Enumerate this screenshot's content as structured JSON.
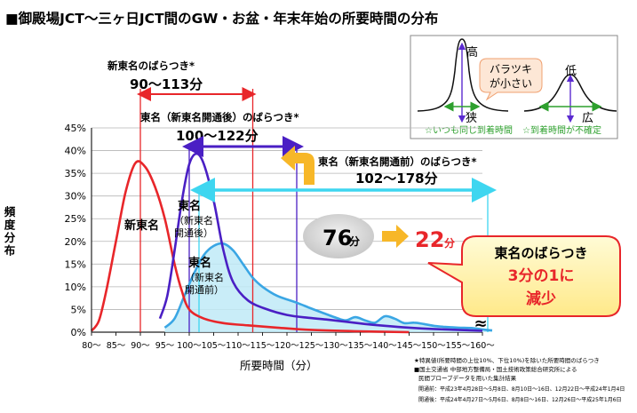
{
  "title": "■御殿場JCT〜三ヶ日JCT間のGW・お盆・年末年始の所要時間の分布",
  "chart_data": {
    "type": "line",
    "x": [
      80,
      85,
      90,
      95,
      100,
      105,
      110,
      115,
      120,
      125,
      130,
      135,
      140,
      145,
      150,
      155,
      160
    ],
    "tick_labels": [
      "80〜",
      "85〜",
      "90〜",
      "95〜",
      "100〜",
      "105〜",
      "110〜",
      "115〜",
      "120〜",
      "125〜",
      "130〜",
      "135〜",
      "140〜",
      "145〜",
      "150〜",
      "155〜",
      "160〜"
    ],
    "y_ticks": [
      "0%",
      "5%",
      "10%",
      "15%",
      "20%",
      "25%",
      "30%",
      "35%",
      "40%",
      "45%"
    ],
    "xlabel": "所要時間（分）",
    "ylabel": "頻度分布",
    "ylim": [
      0,
      45
    ],
    "series": [
      {
        "name": "新東名",
        "color": "#e8262a",
        "fill": false,
        "points": [
          [
            80,
            0.3
          ],
          [
            81.5,
            2.5
          ],
          [
            83,
            9
          ],
          [
            85,
            20
          ],
          [
            87,
            31
          ],
          [
            89,
            37.3
          ],
          [
            91,
            36.4
          ],
          [
            93,
            32
          ],
          [
            95,
            25
          ],
          [
            97,
            15
          ],
          [
            98.5,
            9
          ],
          [
            100,
            5
          ],
          [
            103,
            3
          ],
          [
            107,
            2
          ],
          [
            112,
            1.5
          ],
          [
            118,
            1
          ],
          [
            125,
            0.5
          ],
          [
            135,
            0.2
          ],
          [
            145,
            0
          ]
        ]
      },
      {
        "name": "東名（新東名開通後）",
        "color": "#4a1fc4",
        "fill": false,
        "points": [
          [
            94,
            3
          ],
          [
            95.5,
            8
          ],
          [
            97,
            18
          ],
          [
            98.5,
            29
          ],
          [
            100,
            37
          ],
          [
            101.5,
            39.3
          ],
          [
            103,
            37
          ],
          [
            105,
            29
          ],
          [
            107,
            18
          ],
          [
            109,
            11
          ],
          [
            112,
            7
          ],
          [
            116,
            5
          ],
          [
            120,
            3.8
          ],
          [
            124,
            3.2
          ],
          [
            128,
            2.8
          ],
          [
            132,
            2.3
          ],
          [
            136,
            1.8
          ],
          [
            140,
            1.4
          ],
          [
            145,
            1
          ],
          [
            150,
            0.7
          ],
          [
            155,
            0.5
          ],
          [
            160,
            0.3
          ]
        ]
      },
      {
        "name": "東名（新東名開通前）",
        "color": "#3aa6e4",
        "fill": true,
        "points": [
          [
            95,
            1
          ],
          [
            97,
            3
          ],
          [
            99,
            8
          ],
          [
            101,
            13
          ],
          [
            103,
            17
          ],
          [
            105,
            19
          ],
          [
            107,
            19.5
          ],
          [
            109,
            18
          ],
          [
            111,
            15
          ],
          [
            113,
            12
          ],
          [
            115,
            10
          ],
          [
            118,
            8
          ],
          [
            122,
            6.5
          ],
          [
            125,
            5.2
          ],
          [
            128,
            4
          ],
          [
            130,
            3.2
          ],
          [
            132,
            2.6
          ],
          [
            134,
            3.3
          ],
          [
            136,
            2.6
          ],
          [
            138,
            2.1
          ],
          [
            140,
            3.5
          ],
          [
            142,
            3
          ],
          [
            144,
            2
          ],
          [
            146,
            2.1
          ],
          [
            148,
            1.8
          ],
          [
            150,
            1.4
          ],
          [
            152,
            1.2
          ],
          [
            155,
            1
          ],
          [
            158,
            0.9
          ],
          [
            160,
            0.6
          ],
          [
            162,
            0.4
          ]
        ]
      }
    ],
    "vlines": [
      {
        "x": 90,
        "color": "#e8262a"
      },
      {
        "x": 113,
        "color": "#e8262a"
      },
      {
        "x": 100,
        "color": "#4a1fc4"
      },
      {
        "x": 122,
        "color": "#4a1fc4"
      },
      {
        "x": 102,
        "color": "#3aa6e4"
      },
      {
        "x": 178,
        "color": "#3aa6e4"
      }
    ],
    "ranges": [
      {
        "label": "新東名のばらつき*",
        "value": "90〜113分",
        "color": "#e8262a",
        "from": 90,
        "to": 113
      },
      {
        "label": "東名（新東名開通後）のばらつき*",
        "value": "100〜122分",
        "color": "#4a1fc4",
        "from": 100,
        "to": 122
      },
      {
        "label": "東名（新東名開通前）のばらつき*",
        "value": "102〜178分",
        "color": "#3aa6e4",
        "from": 102,
        "to": 178
      }
    ],
    "series_labels": {
      "shintomei": "新東名",
      "after": [
        "東名",
        "（新東名",
        "開通後）"
      ],
      "before": [
        "東名",
        "（新東名",
        "開通前）"
      ]
    },
    "break_mark": "≈"
  },
  "comparison": {
    "before": "76",
    "after": "22",
    "unit": "分"
  },
  "callout": {
    "line1": "東名のばらつき",
    "line2": "3分の1に",
    "line3": "減少"
  },
  "inset": {
    "high": "高",
    "low": "低",
    "narrow": "狭",
    "wide": "広",
    "bubble": [
      "バラツキ",
      "が小さい"
    ],
    "caption_left": "☆いつも同じ到着時間",
    "caption_right": "☆到着時間が不確定"
  },
  "footnotes": [
    "★特異値(所要時間の上位10%、下位10%)を除いた所要時間のばらつき",
    "■国土交通省 中部地方整備局・国土技術政策総合研究所による",
    "民間プローブデータを用いた集計結果",
    "開通前：平成23年4月28日〜5月8日、8月10日〜16日、12月22日〜平成24年1月4日",
    "開通後：平成24年4月27日〜5月6日、8月8日〜16日、12月26日〜平成25年1月6日"
  ]
}
